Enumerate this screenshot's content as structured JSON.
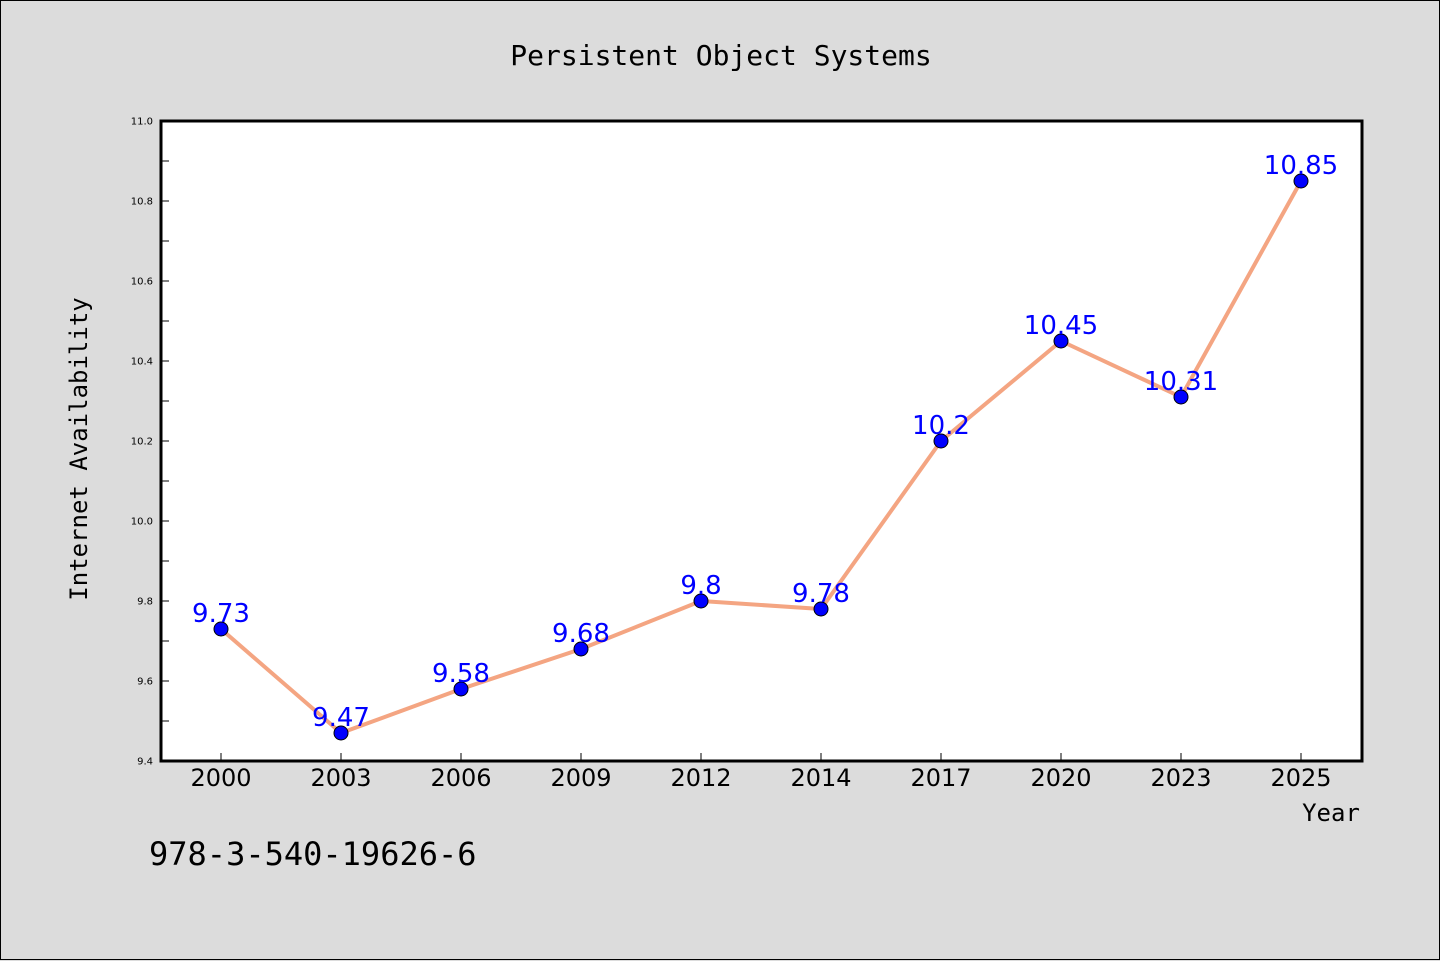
{
  "chart_data": {
    "type": "line",
    "title": "Persistent Object Systems",
    "xlabel": "Year",
    "ylabel": "Internet Availability",
    "categories": [
      "2000",
      "2003",
      "2006",
      "2009",
      "2012",
      "2014",
      "2017",
      "2020",
      "2023",
      "2025"
    ],
    "series": [
      {
        "values": [
          9.73,
          9.47,
          9.58,
          9.68,
          9.8,
          9.78,
          10.2,
          10.45,
          10.31,
          10.85
        ],
        "data_labels": [
          "9.73",
          "9.47",
          "9.58",
          "9.68",
          "9.8",
          "9.78",
          "10.2",
          "10.45",
          "10.31",
          "10.85"
        ]
      }
    ],
    "ylim": [
      9.4,
      11.0
    ],
    "yticks": [
      "9.4",
      "9.6",
      "9.8",
      "10.0",
      "10.2",
      "10.4",
      "10.6",
      "10.8",
      "11.0"
    ],
    "grid": false,
    "line_color": "#f4a582",
    "marker_color": "#0000ff",
    "label_color": "#0000ff",
    "background_color": "#dcdcdc",
    "plot_background": "#ffffff"
  },
  "footer_text": "978-3-540-19626-6"
}
